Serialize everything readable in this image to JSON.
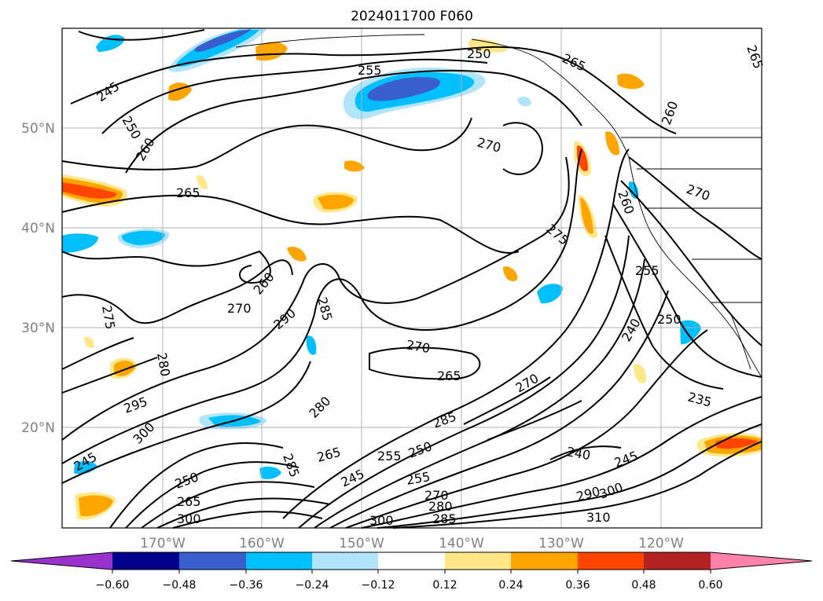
{
  "map": {
    "title": "2024011700 F060",
    "lat_labels": [
      "50°N",
      "40°N",
      "30°N",
      "20°N"
    ],
    "lon_labels": [
      "170°W",
      "160°W",
      "150°W",
      "140°W",
      "130°W",
      "120°W"
    ],
    "extent": {
      "lon_min": -180,
      "lon_max": -110,
      "lat_min": 10,
      "lat_max": 60
    },
    "contour_labels": [
      "245",
      "250",
      "255",
      "260",
      "265",
      "270",
      "275",
      "280",
      "285",
      "290",
      "295",
      "300",
      "310",
      "235",
      "240"
    ]
  },
  "colorbar": {
    "tick_labels": [
      "−0.60",
      "−0.48",
      "−0.36",
      "−0.24",
      "−0.12",
      "0.12",
      "0.24",
      "0.36",
      "0.48",
      "0.60"
    ],
    "colors": [
      "#9932cc",
      "#00008b",
      "#3a5fcd",
      "#00bfff",
      "#b2e5fb",
      "#ffffff",
      "#ffe88a",
      "#ffa500",
      "#ff4500",
      "#b22222",
      "#ff82ab"
    ],
    "extend": "both"
  },
  "colors": {
    "contour": "#000000",
    "grid": "#b0b0b0",
    "axis_label": "#808080"
  }
}
